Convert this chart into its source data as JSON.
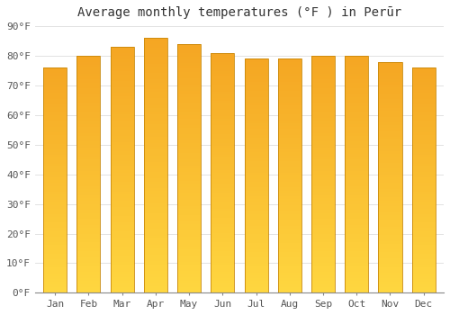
{
  "title": "Average monthly temperatures (°F ) in Perūr",
  "months": [
    "Jan",
    "Feb",
    "Mar",
    "Apr",
    "May",
    "Jun",
    "Jul",
    "Aug",
    "Sep",
    "Oct",
    "Nov",
    "Dec"
  ],
  "values": [
    76,
    80,
    83,
    86,
    84,
    81,
    79,
    79,
    80,
    80,
    78,
    76
  ],
  "bar_color_top": "#F5A623",
  "bar_color_bottom": "#FFD740",
  "bar_edge_color": "#B8860B",
  "background_color": "#FFFFFF",
  "grid_color": "#DDDDDD",
  "ylim": [
    0,
    90
  ],
  "yticks": [
    0,
    10,
    20,
    30,
    40,
    50,
    60,
    70,
    80,
    90
  ],
  "ytick_labels": [
    "0°F",
    "10°F",
    "20°F",
    "30°F",
    "40°F",
    "50°F",
    "60°F",
    "70°F",
    "80°F",
    "90°F"
  ],
  "title_fontsize": 10,
  "tick_fontsize": 8,
  "bar_width": 0.7,
  "num_gradient_segments": 80
}
